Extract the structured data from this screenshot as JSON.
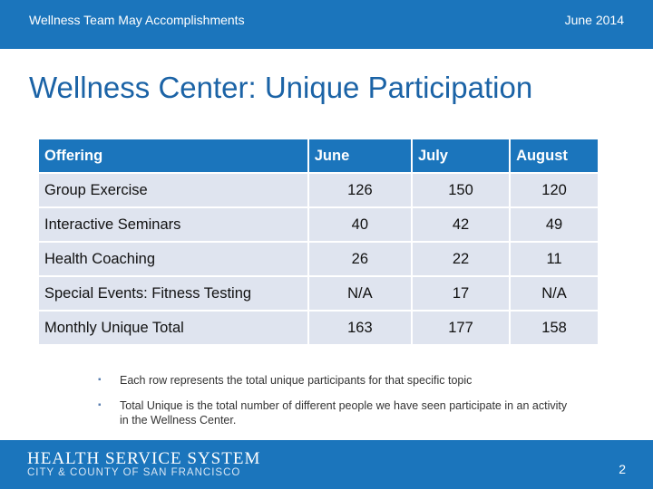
{
  "header": {
    "left_text": "Wellness Team May Accomplishments",
    "right_text": "June 2014"
  },
  "title": "Wellness Center: Unique Participation",
  "table": {
    "headers": [
      "Offering",
      "June",
      "July",
      "August"
    ],
    "rows": [
      [
        "Group Exercise",
        "126",
        "150",
        "120"
      ],
      [
        "Interactive Seminars",
        "40",
        "42",
        "49"
      ],
      [
        "Health Coaching",
        "26",
        "22",
        "11"
      ],
      [
        "Special Events: Fitness Testing",
        "N/A",
        "17",
        "N/A"
      ],
      [
        "Monthly Unique Total",
        "163",
        "177",
        "158"
      ]
    ]
  },
  "notes": [
    "Each row represents the total unique participants for that specific topic",
    "Total Unique is the total number of different people we have seen participate in an activity in the Wellness Center."
  ],
  "bullet_glyph": "▪",
  "footer": {
    "logo_line1": "HEALTH SERVICE SYSTEM",
    "logo_line2": "CITY & COUNTY OF SAN FRANCISCO",
    "page_number": "2"
  },
  "colors": {
    "brand_blue": "#1b75bc",
    "title_blue": "#1b63a6",
    "row_fill": "#dfe4ef"
  }
}
